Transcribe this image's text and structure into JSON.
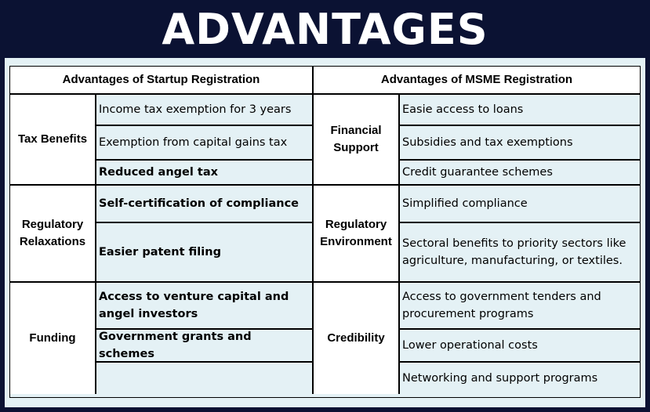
{
  "title": "ADVANTAGES",
  "headers": {
    "startup": "Advantages of Startup Registration",
    "msme": "Advantages of MSME Registration"
  },
  "startup": {
    "tax": {
      "label": "Tax Benefits",
      "items": [
        "Income tax exemption for 3 years",
        "Exemption from capital gains tax",
        "Reduced angel tax"
      ]
    },
    "regulatory": {
      "label": "Regulatory Relaxations",
      "items": [
        "Self-certification of compliance",
        "Easier patent filing"
      ]
    },
    "funding": {
      "label": "Funding",
      "items": [
        "Access to venture capital and angel investors",
        "Government grants and schemes",
        ""
      ]
    }
  },
  "msme": {
    "financial": {
      "label": "Financial Support",
      "items": [
        "Easie access to loans",
        "Subsidies and tax exemptions",
        "Credit guarantee schemes"
      ]
    },
    "regulatory": {
      "label": "Regulatory Environment",
      "items": [
        "Simplified compliance",
        "Sectoral benefits to priority sectors like agriculture, manufacturing, or textiles."
      ]
    },
    "credibility": {
      "label": "Credibility",
      "items": [
        "Access to government tenders and procurement programs",
        "Lower operational costs",
        "Networking and support programs"
      ]
    }
  }
}
